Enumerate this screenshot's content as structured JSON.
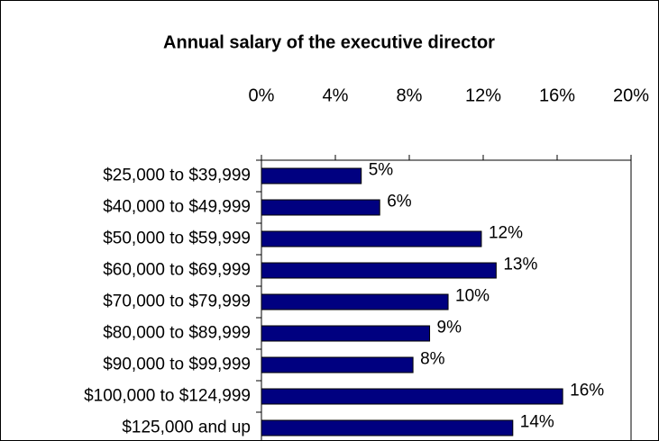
{
  "chart_data": {
    "type": "bar",
    "orientation": "horizontal",
    "title": "Annual salary of the executive director",
    "categories": [
      "$25,000 to $39,999",
      "$40,000 to $49,999",
      "$50,000 to $59,999",
      "$60,000 to $69,999",
      "$70,000 to $79,999",
      "$80,000 to $89,999",
      "$90,000 to $99,999",
      "$100,000 to $124,999",
      "$125,000 and up"
    ],
    "values": [
      5.4,
      6.4,
      11.9,
      12.7,
      10.1,
      9.1,
      8.2,
      16.3,
      13.6
    ],
    "value_labels": [
      "5%",
      "6%",
      "12%",
      "13%",
      "10%",
      "9%",
      "8%",
      "16%",
      "14%"
    ],
    "color": "#000080",
    "xlim": [
      0,
      20
    ],
    "xticks": [
      {
        "value": 0,
        "label": "0%"
      },
      {
        "value": 4,
        "label": "4%"
      },
      {
        "value": 8,
        "label": "8%"
      },
      {
        "value": 12,
        "label": "12%"
      },
      {
        "value": 16,
        "label": "16%"
      },
      {
        "value": 20,
        "label": "20%"
      }
    ],
    "x_axis_position": "top"
  }
}
